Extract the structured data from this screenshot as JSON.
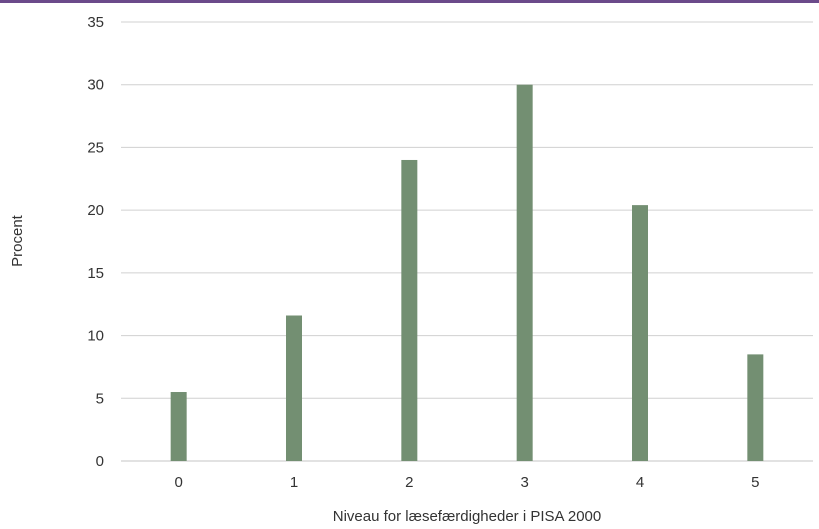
{
  "chart_data": {
    "type": "bar",
    "title": "",
    "xlabel": "Niveau for læsefærdigheder i PISA 2000",
    "ylabel": "Procent",
    "categories": [
      "0",
      "1",
      "2",
      "3",
      "4",
      "5"
    ],
    "values": [
      5.5,
      11.6,
      24.0,
      30.0,
      20.4,
      8.5
    ],
    "ylim": [
      0,
      35
    ],
    "yticks": [
      "0",
      "5",
      "10",
      "15",
      "20",
      "25",
      "30",
      "35"
    ],
    "grid": true,
    "bar_color": "#738f72",
    "grid_color": "#d0d0d0",
    "accent_color": "#6b4a8a"
  }
}
